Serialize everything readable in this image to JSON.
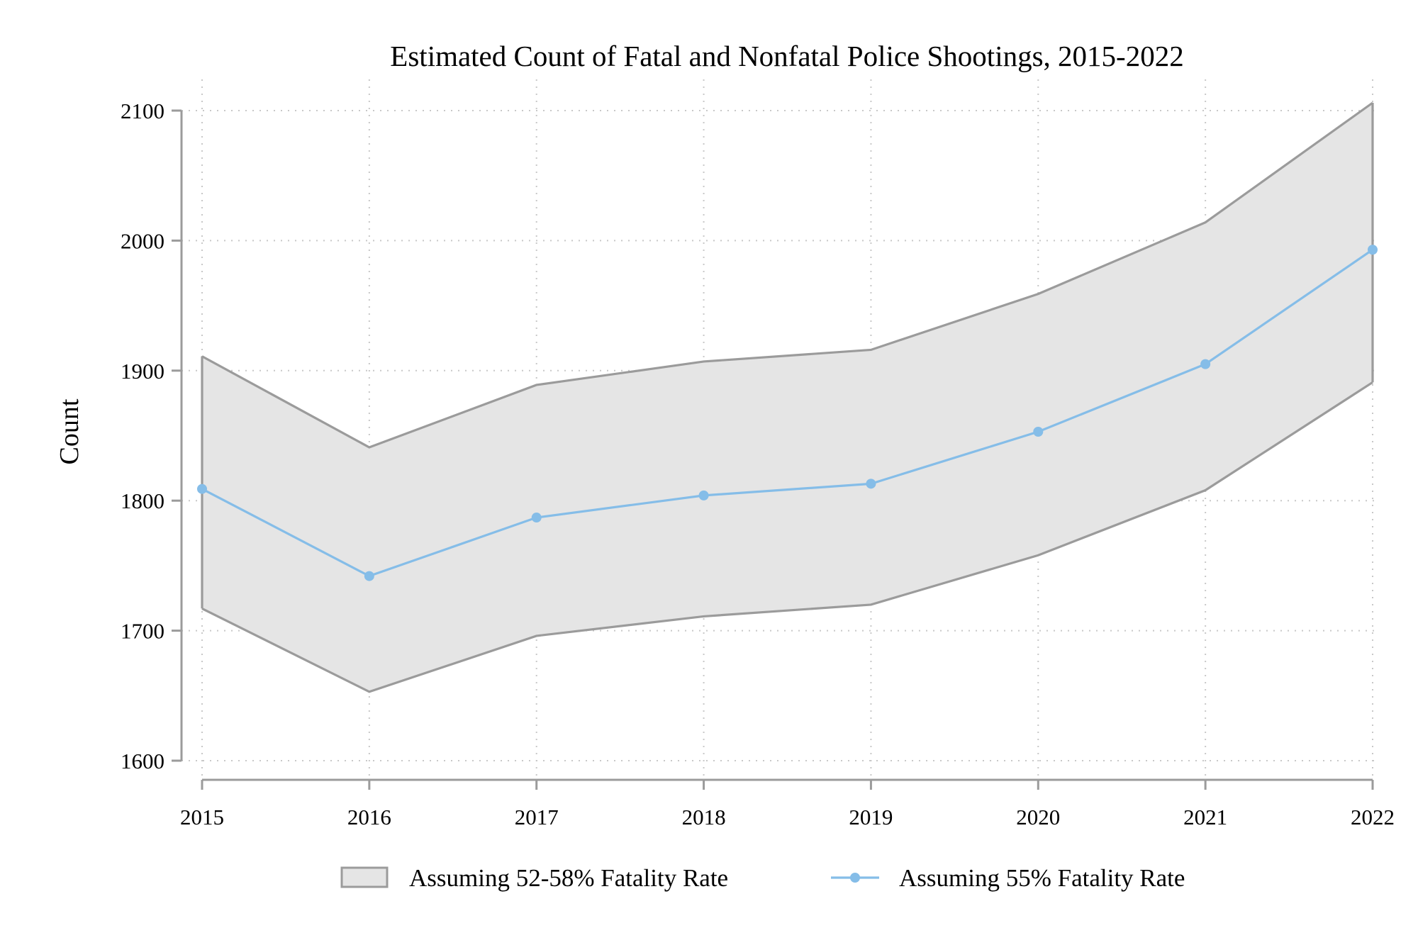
{
  "chart_data": {
    "type": "line",
    "title": "Estimated Count of Fatal and Nonfatal Police Shootings, 2015-2022",
    "xlabel": "",
    "ylabel": "Count",
    "x": [
      2015,
      2016,
      2017,
      2018,
      2019,
      2020,
      2021,
      2022
    ],
    "x_tick_labels": [
      "2015",
      "2016",
      "2017",
      "2018",
      "2019",
      "2020",
      "2021",
      "2022"
    ],
    "y_ticks": [
      1600,
      1700,
      1800,
      1900,
      2000,
      2100
    ],
    "y_tick_labels": [
      "1600",
      "1700",
      "1800",
      "1900",
      "2000",
      "2100"
    ],
    "xlim": [
      2015,
      2022
    ],
    "ylim": [
      1600,
      2100
    ],
    "grid": true,
    "legend_position": "bottom",
    "band": {
      "name": "Assuming 52-58% Fatality Rate",
      "upper": [
        1911,
        1841,
        1889,
        1907,
        1916,
        1959,
        2014,
        2106
      ],
      "lower": [
        1717,
        1653,
        1696,
        1711,
        1720,
        1758,
        1808,
        1891
      ],
      "fill_color": "#e5e5e5",
      "line_color": "#9b9b9b"
    },
    "series": [
      {
        "name": "Assuming 55% Fatality Rate",
        "values": [
          1809,
          1742,
          1787,
          1804,
          1813,
          1853,
          1905,
          1993
        ],
        "color": "#85bde8"
      }
    ]
  },
  "colors": {
    "axis": "#9b9b9b",
    "grid": "#c8c8c8",
    "band_fill": "#e5e5e5",
    "band_line": "#9b9b9b",
    "series_line": "#85bde8"
  }
}
